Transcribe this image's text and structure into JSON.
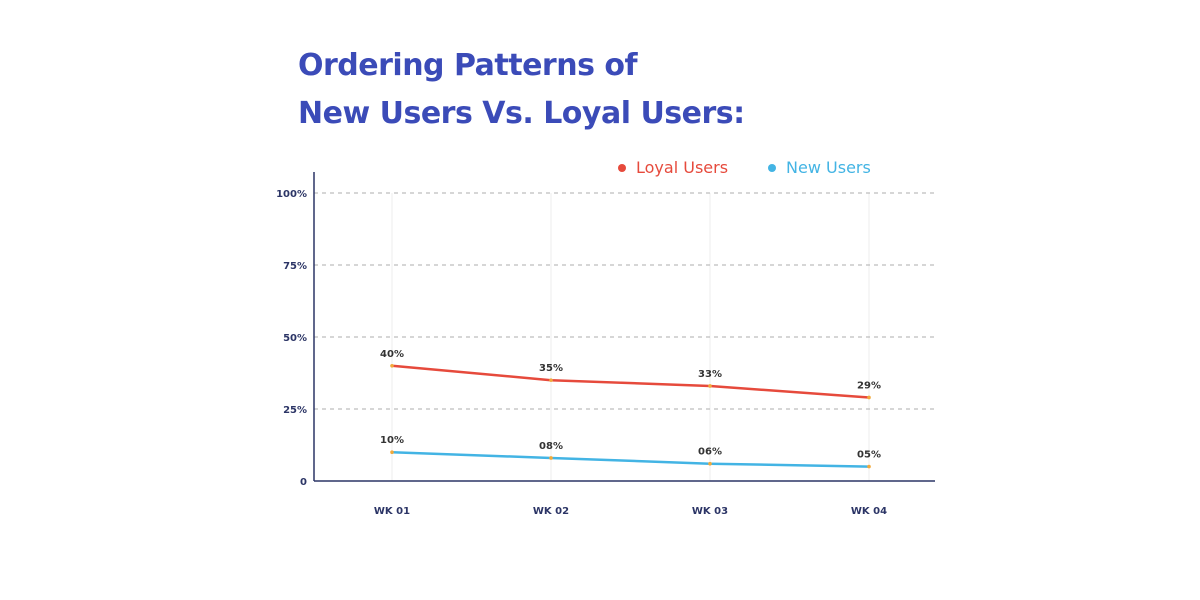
{
  "title_lines": [
    "Ordering Patterns of",
    "New Users Vs. Loyal Users:"
  ],
  "colors": {
    "title": "#3b4bb8",
    "loyal": "#e64a3c",
    "new": "#43b4e4",
    "axis": "#2c3566",
    "tick_text": "#2c3566",
    "grid": "#bdbdbd"
  },
  "chart_data": {
    "type": "line",
    "title": "Ordering Patterns of New Users Vs. Loyal Users:",
    "xlabel": "",
    "ylabel": "",
    "categories": [
      "WK 01",
      "WK 02",
      "WK 03",
      "WK 04"
    ],
    "y_ticks": [
      {
        "value": 0,
        "label": "0"
      },
      {
        "value": 25,
        "label": "25%"
      },
      {
        "value": 50,
        "label": "50%"
      },
      {
        "value": 75,
        "label": "75%"
      },
      {
        "value": 100,
        "label": "100%"
      }
    ],
    "ylim": [
      0,
      100
    ],
    "grid": true,
    "legend_position": "top-right",
    "series": [
      {
        "name": "Loyal Users",
        "color": "#e64a3c",
        "values": [
          40,
          35,
          33,
          29
        ],
        "labels": [
          "40%",
          "35%",
          "33%",
          "29%"
        ]
      },
      {
        "name": "New Users",
        "color": "#43b4e4",
        "values": [
          10,
          8,
          6,
          5
        ],
        "labels": [
          "10%",
          "08%",
          "06%",
          "05%"
        ]
      }
    ]
  }
}
